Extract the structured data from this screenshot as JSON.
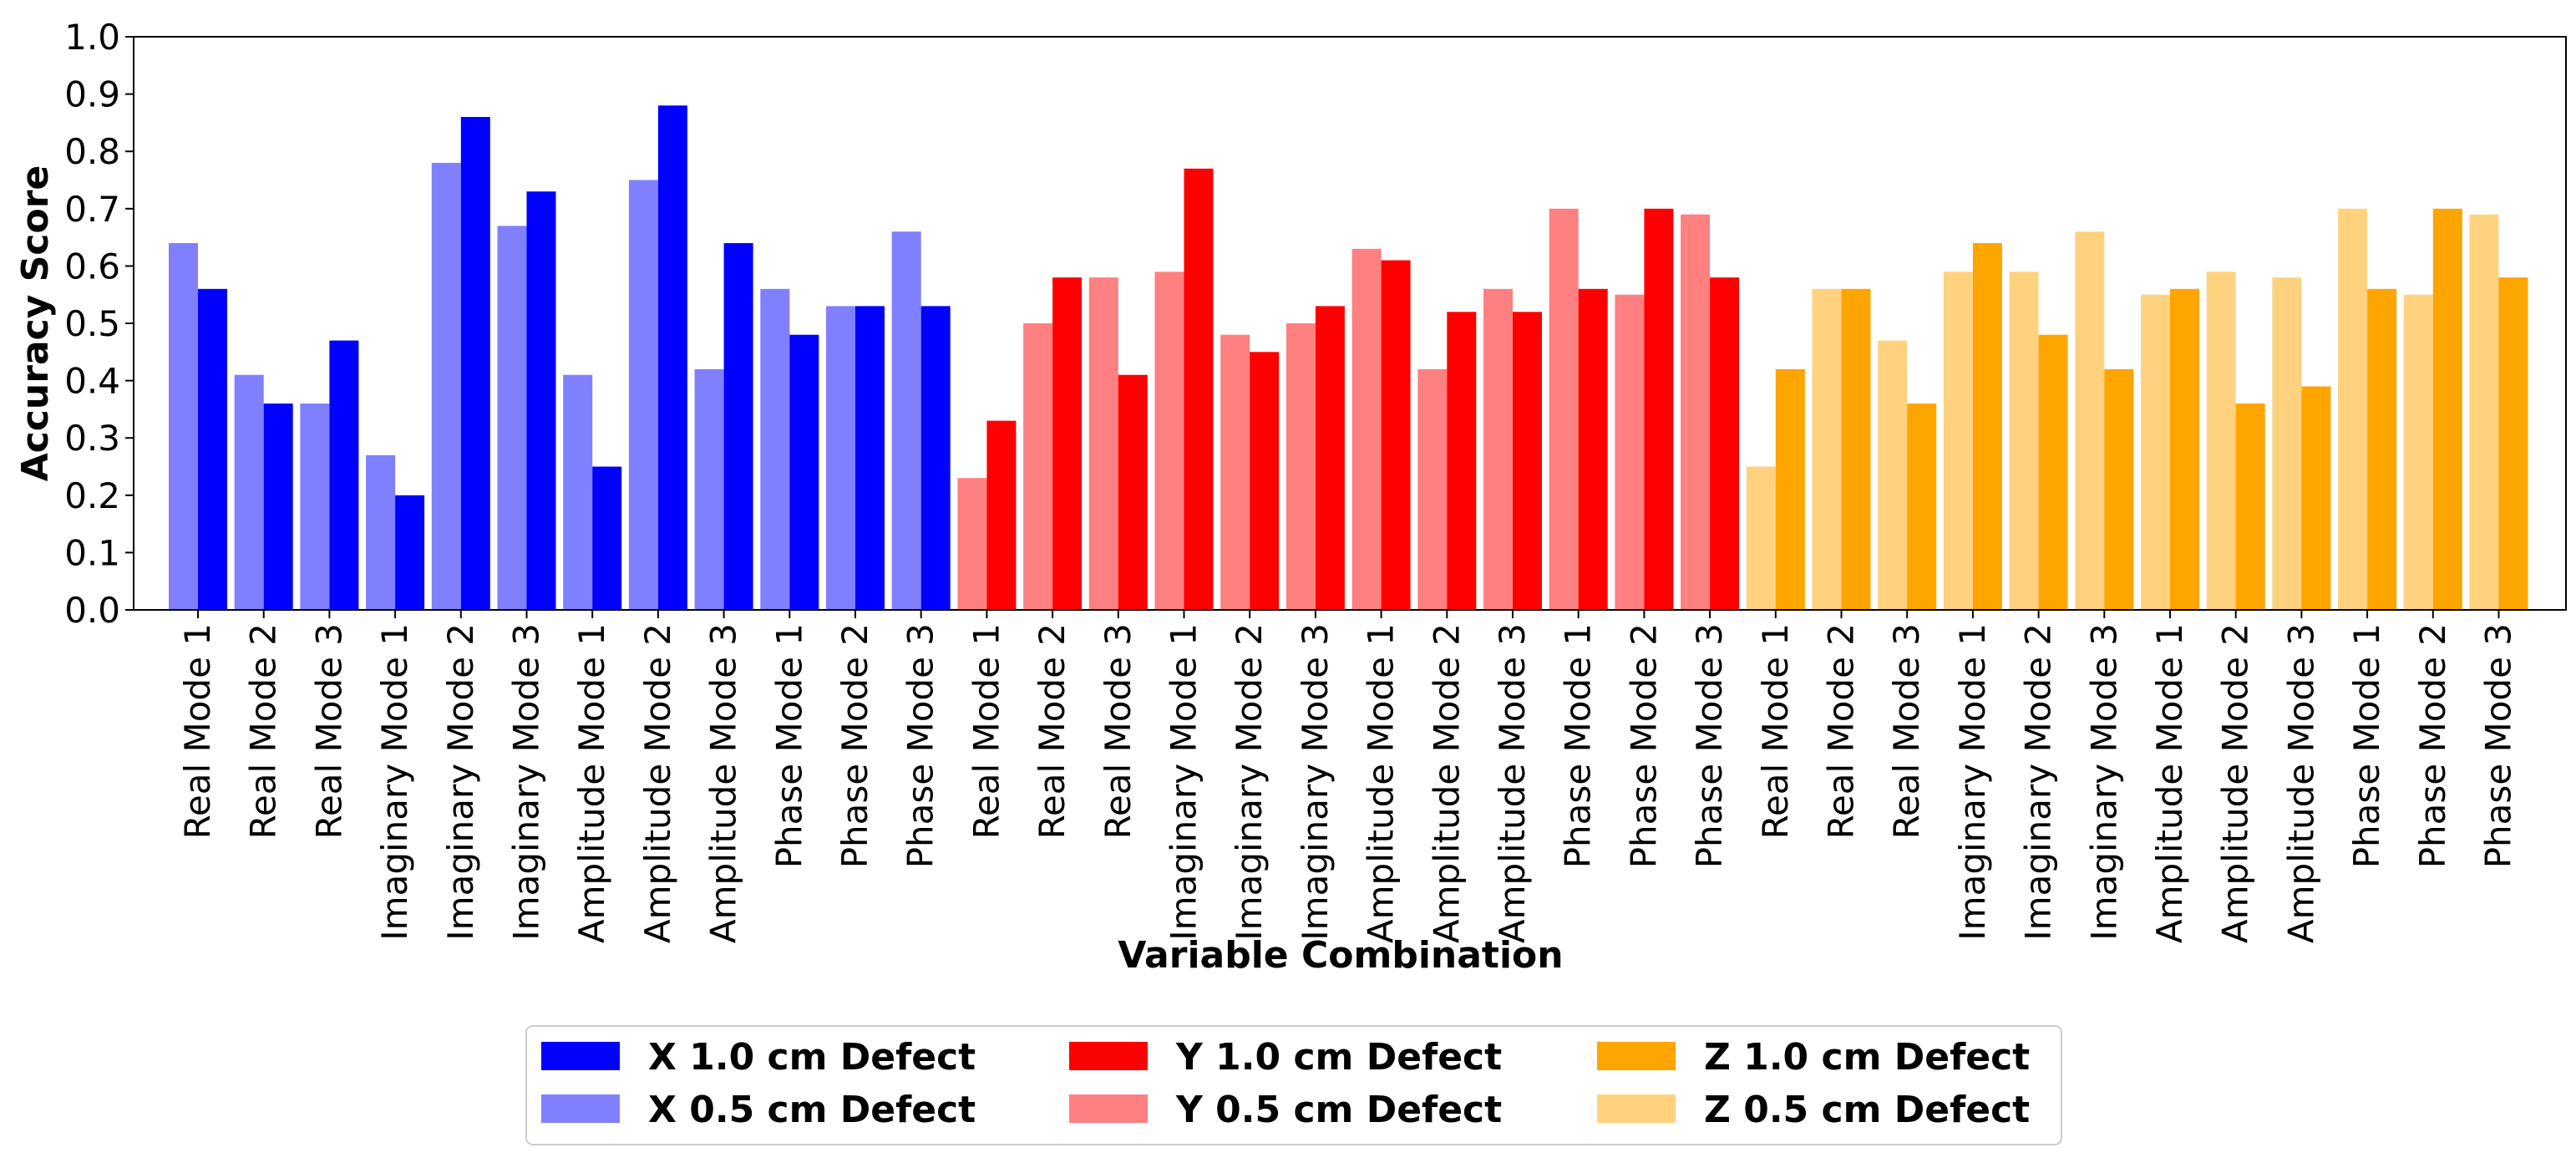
{
  "chart_data": {
    "type": "bar",
    "title": "",
    "xlabel": "Variable Combination",
    "ylabel": "Accuracy Score",
    "ylim": [
      0,
      1.0
    ],
    "yticks": [
      "0.0",
      "0.1",
      "0.2",
      "0.3",
      "0.4",
      "0.5",
      "0.6",
      "0.7",
      "0.8",
      "0.9",
      "1.0"
    ],
    "categories": [
      "Real Mode 1",
      "Real Mode 2",
      "Real Mode 3",
      "Imaginary Mode 1",
      "Imaginary Mode 2",
      "Imaginary Mode 3",
      "Amplitude Mode 1",
      "Amplitude Mode 2",
      "Amplitude Mode 3",
      "Phase Mode 1",
      "Phase Mode 2",
      "Phase Mode 3",
      "Real Mode 1",
      "Real Mode 2",
      "Real Mode 3",
      "Imaginary Mode 1",
      "Imaginary Mode 2",
      "Imaginary Mode 3",
      "Amplitude Mode 1",
      "Amplitude Mode 2",
      "Amplitude Mode 3",
      "Phase Mode 1",
      "Phase Mode 2",
      "Phase Mode 3",
      "Real Mode 1",
      "Real Mode 2",
      "Real Mode 3",
      "Imaginary Mode 1",
      "Imaginary Mode 2",
      "Imaginary Mode 3",
      "Amplitude Mode 1",
      "Amplitude Mode 2",
      "Amplitude Mode 3",
      "Phase Mode 1",
      "Phase Mode 2",
      "Phase Mode 3"
    ],
    "groups": [
      {
        "axis": "X",
        "series": [
          {
            "name": "X 0.5 cm Defect",
            "color": "#8080ff",
            "values": [
              0.64,
              0.41,
              0.36,
              0.27,
              0.78,
              0.67,
              0.41,
              0.75,
              0.42,
              0.56,
              0.53,
              0.66
            ]
          },
          {
            "name": "X 1.0 cm Defect",
            "color": "#0000ff",
            "values": [
              0.56,
              0.36,
              0.47,
              0.2,
              0.86,
              0.73,
              0.25,
              0.88,
              0.64,
              0.48,
              0.53,
              0.53
            ]
          }
        ]
      },
      {
        "axis": "Y",
        "series": [
          {
            "name": "Y 0.5 cm Defect",
            "color": "#ff8080",
            "values": [
              0.23,
              0.5,
              0.58,
              0.59,
              0.48,
              0.5,
              0.63,
              0.42,
              0.56,
              0.7,
              0.55,
              0.69
            ]
          },
          {
            "name": "Y 1.0 cm Defect",
            "color": "#ff0000",
            "values": [
              0.33,
              0.58,
              0.41,
              0.77,
              0.45,
              0.53,
              0.61,
              0.52,
              0.52,
              0.56,
              0.7,
              0.58
            ]
          }
        ]
      },
      {
        "axis": "Z",
        "series": [
          {
            "name": "Z 0.5 cm Defect",
            "color": "#ffd280",
            "values": [
              0.25,
              0.56,
              0.47,
              0.59,
              0.59,
              0.66,
              0.55,
              0.59,
              0.58,
              0.7,
              0.55,
              0.69
            ]
          },
          {
            "name": "Z 1.0 cm Defect",
            "color": "#ffa500",
            "values": [
              0.42,
              0.56,
              0.36,
              0.64,
              0.48,
              0.42,
              0.56,
              0.36,
              0.39,
              0.56,
              0.7,
              0.58
            ]
          }
        ]
      }
    ],
    "legend": {
      "placement": "bottom-center",
      "entries": [
        {
          "label": "X 1.0 cm Defect",
          "color": "#0000ff"
        },
        {
          "label": "Y 1.0 cm Defect",
          "color": "#ff0000"
        },
        {
          "label": "Z 1.0 cm Defect",
          "color": "#ffa500"
        },
        {
          "label": "X 0.5 cm Defect",
          "color": "#8080ff"
        },
        {
          "label": "Y 0.5 cm Defect",
          "color": "#ff8080"
        },
        {
          "label": "Z 0.5 cm Defect",
          "color": "#ffd280"
        }
      ]
    }
  }
}
